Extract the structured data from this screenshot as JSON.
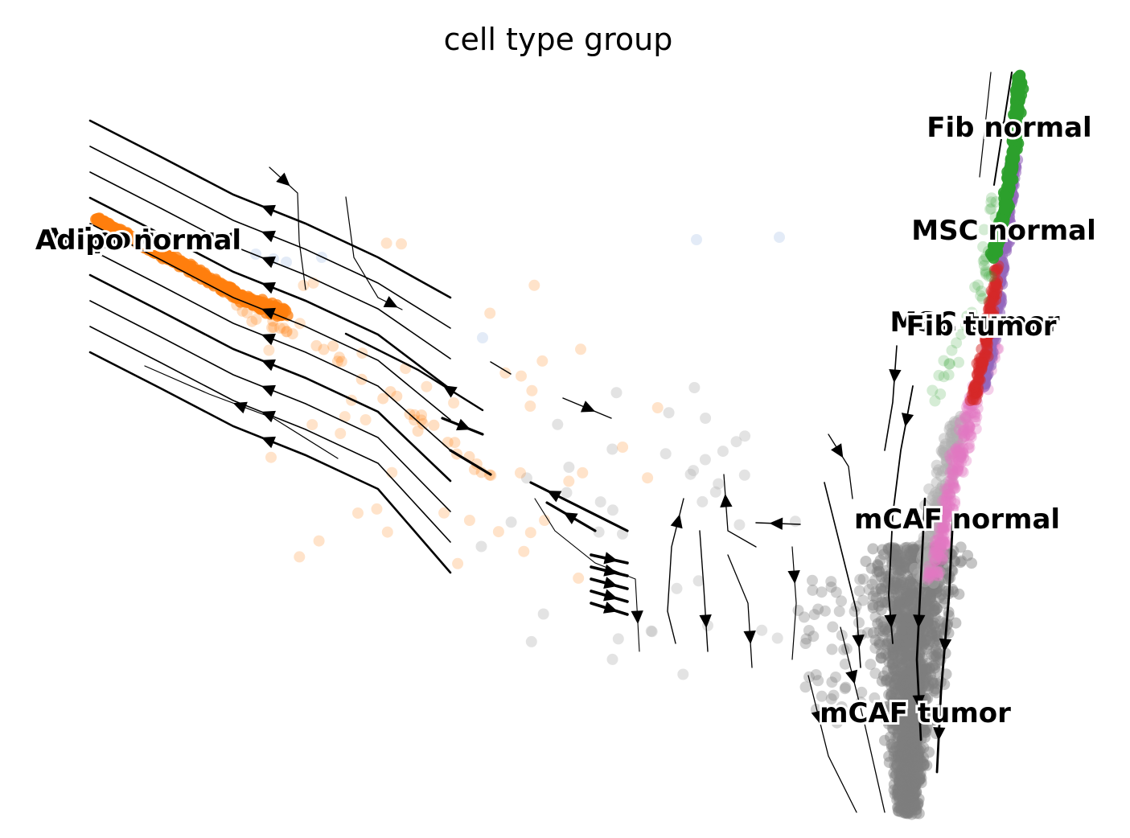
{
  "chart_data": {
    "type": "scatter",
    "title": "cell type group",
    "subtype": "embedding scatter with RNA velocity streamlines",
    "axes_visible": false,
    "grid": false,
    "legend": "on data",
    "series": [
      {
        "name": "Adipo tumor",
        "color": "#ff7f0e"
      },
      {
        "name": "Adipo normal",
        "color": "#aec7e8"
      },
      {
        "name": "Fib normal",
        "color": "#2ca02c"
      },
      {
        "name": "MSC normal",
        "color": "#9467bd"
      },
      {
        "name": "MSC tumor",
        "color": "#d62728"
      },
      {
        "name": "Fib tumor",
        "color": "#e377c2"
      },
      {
        "name": "mCAF normal",
        "color": "#b0b0b0"
      },
      {
        "name": "mCAF tumor",
        "color": "#7f7f7f"
      }
    ]
  }
}
